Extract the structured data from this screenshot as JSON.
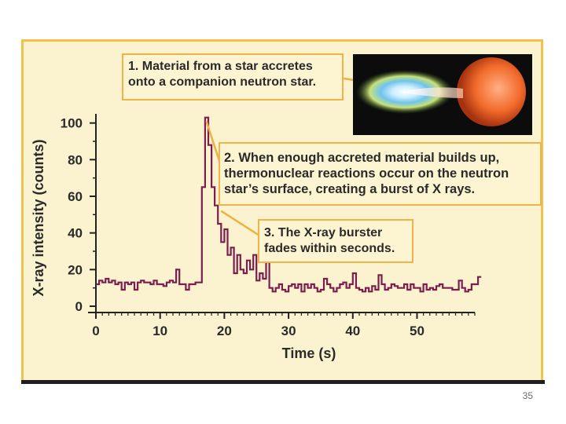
{
  "slide": {
    "number": "35"
  },
  "colors": {
    "line": "#7b1e4d",
    "panel": "#fbf3cf",
    "panel_border": "#f2c24a",
    "callout_border": "#f2b24a",
    "leader": "#f0b040"
  },
  "callouts": {
    "c1": {
      "number": "1.",
      "text": "Material from a star accretes\nonto a companion neutron star."
    },
    "c2": {
      "number": "2.",
      "text": "When enough accreted material builds up,\nthermonuclear reactions occur on the neutron\nstar’s surface, creating a burst of X rays."
    },
    "c3": {
      "number": "3.",
      "text": "The X-ray burster\nfades within seconds."
    }
  },
  "image": {
    "description_icon": "accretion-disk-and-companion-star-icon"
  },
  "chart_data": {
    "type": "line",
    "title": "",
    "xlabel": "Time (s)",
    "ylabel": "X-ray intensity (counts)",
    "xlim": [
      0,
      59
    ],
    "ylim": [
      0,
      105
    ],
    "xticks": [
      0,
      10,
      20,
      30,
      40,
      50
    ],
    "yticks": [
      0,
      20,
      40,
      60,
      80,
      100
    ],
    "grid": false,
    "step": true,
    "x_start": 0,
    "x_step": 0.5,
    "series": [
      {
        "name": "X-ray intensity",
        "values": [
          12,
          14,
          13,
          15,
          13,
          14,
          12,
          13,
          9,
          13,
          12,
          13,
          9,
          13,
          14,
          13,
          13,
          12,
          14,
          12,
          12,
          11,
          13,
          14,
          13,
          20,
          12,
          12,
          9,
          12,
          12,
          13,
          13,
          65,
          103,
          88,
          65,
          55,
          45,
          35,
          42,
          28,
          32,
          18,
          28,
          20,
          18,
          25,
          20,
          28,
          14,
          18,
          15,
          24,
          10,
          8,
          10,
          12,
          9,
          8,
          11,
          12,
          10,
          12,
          8,
          12,
          10,
          12,
          10,
          8,
          9,
          15,
          12,
          10,
          8,
          10,
          12,
          13,
          10,
          12,
          18,
          10,
          9,
          8,
          10,
          8,
          11,
          9,
          17,
          12,
          9,
          10,
          12,
          11,
          10,
          10,
          12,
          9,
          12,
          10,
          10,
          8,
          12,
          9,
          10,
          9,
          11,
          12,
          10,
          10,
          10,
          9,
          9,
          14,
          10,
          8,
          9,
          12,
          12,
          16
        ]
      }
    ],
    "annotations": [
      {
        "label": "2",
        "at_x": 16.8,
        "at_y": 102
      },
      {
        "label": "3",
        "at_x": 19.0,
        "at_y": 55
      }
    ]
  }
}
